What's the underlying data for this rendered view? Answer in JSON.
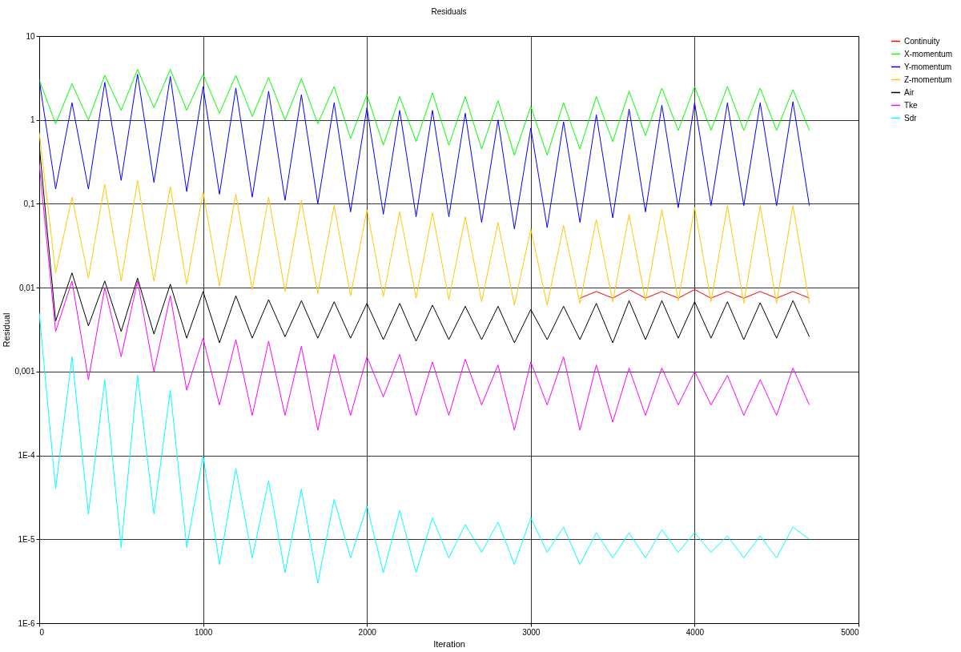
{
  "chart_data": {
    "type": "line",
    "title": "Residuals",
    "xlabel": "Iteration",
    "ylabel": "Residual",
    "log": "y",
    "grid": true,
    "legend": "right",
    "line_style": "solid",
    "xlim": [
      0,
      5000
    ],
    "xticks": [
      0,
      1000,
      2000,
      3000,
      4000,
      5000
    ],
    "ylim": [
      1e-06,
      10
    ],
    "yticks": [
      {
        "value": 1e-06,
        "label": "1E-6"
      },
      {
        "value": 1e-05,
        "label": "1E-5"
      },
      {
        "value": 0.0001,
        "label": "1E-4"
      },
      {
        "value": 0.001,
        "label": "0,001"
      },
      {
        "value": 0.01,
        "label": "0,01"
      },
      {
        "value": 0.1,
        "label": "0,1"
      },
      1,
      10
    ],
    "x": [
      0,
      100,
      200,
      300,
      400,
      500,
      600,
      700,
      800,
      900,
      1000,
      1100,
      1200,
      1300,
      1400,
      1500,
      1600,
      1700,
      1800,
      1900,
      2000,
      2100,
      2200,
      2300,
      2400,
      2500,
      2600,
      2700,
      2800,
      2900,
      3000,
      3100,
      3200,
      3300,
      3400,
      3500,
      3600,
      3700,
      3800,
      3900,
      4000,
      4100,
      4200,
      4300,
      4400,
      4500,
      4600,
      4700
    ],
    "series": [
      {
        "name": "Continuity",
        "color": "#ff0000",
        "x": [
          3300,
          3400,
          3500,
          3600,
          3700,
          3800,
          3900,
          4000,
          4100,
          4200,
          4300,
          4400,
          4500,
          4600,
          4700
        ],
        "values": [
          0.0075,
          0.009,
          0.0075,
          0.0095,
          0.0075,
          0.009,
          0.0075,
          0.0095,
          0.0075,
          0.009,
          0.0075,
          0.009,
          0.0075,
          0.009,
          0.0075
        ]
      },
      {
        "name": "X-momentum",
        "color": "#00ff00",
        "values": [
          3.0,
          0.9,
          2.7,
          1.0,
          3.4,
          1.3,
          4.0,
          1.4,
          4.0,
          1.3,
          3.5,
          1.2,
          3.4,
          1.1,
          3.2,
          1.0,
          3.1,
          0.9,
          2.5,
          0.6,
          2.0,
          0.5,
          1.9,
          0.55,
          2.1,
          0.5,
          1.9,
          0.45,
          1.7,
          0.38,
          1.45,
          0.38,
          1.6,
          0.45,
          1.9,
          0.55,
          2.2,
          0.65,
          2.4,
          0.75,
          2.5,
          0.75,
          2.5,
          0.75,
          2.4,
          0.75,
          2.3,
          0.75
        ]
      },
      {
        "name": "Y-momentum",
        "color": "#0000ff",
        "values": [
          3.0,
          0.15,
          1.6,
          0.15,
          2.8,
          0.19,
          3.5,
          0.18,
          3.3,
          0.14,
          2.5,
          0.13,
          2.4,
          0.12,
          2.2,
          0.11,
          2.0,
          0.1,
          1.6,
          0.08,
          1.4,
          0.075,
          1.3,
          0.07,
          1.3,
          0.07,
          1.2,
          0.06,
          1.0,
          0.05,
          0.8,
          0.052,
          0.95,
          0.06,
          1.15,
          0.068,
          1.35,
          0.08,
          1.5,
          0.09,
          1.6,
          0.095,
          1.6,
          0.095,
          1.6,
          0.095,
          1.65,
          0.095
        ]
      },
      {
        "name": "Z-momentum",
        "color": "#ffc800",
        "values": [
          0.7,
          0.015,
          0.12,
          0.013,
          0.17,
          0.012,
          0.19,
          0.012,
          0.16,
          0.011,
          0.14,
          0.0105,
          0.13,
          0.0095,
          0.12,
          0.009,
          0.11,
          0.0085,
          0.095,
          0.008,
          0.085,
          0.0078,
          0.08,
          0.0075,
          0.078,
          0.0072,
          0.07,
          0.0068,
          0.06,
          0.0062,
          0.05,
          0.0062,
          0.055,
          0.0065,
          0.065,
          0.0068,
          0.075,
          0.007,
          0.085,
          0.007,
          0.09,
          0.0068,
          0.095,
          0.0065,
          0.095,
          0.0065,
          0.095,
          0.0065
        ]
      },
      {
        "name": "Air",
        "color": "#000000",
        "values": [
          0.5,
          0.004,
          0.015,
          0.0035,
          0.012,
          0.003,
          0.013,
          0.0028,
          0.011,
          0.0025,
          0.009,
          0.0022,
          0.008,
          0.0025,
          0.0072,
          0.0026,
          0.007,
          0.0025,
          0.0068,
          0.0025,
          0.0065,
          0.0024,
          0.0065,
          0.0023,
          0.0062,
          0.0024,
          0.006,
          0.0024,
          0.006,
          0.0022,
          0.0055,
          0.0024,
          0.006,
          0.0024,
          0.0065,
          0.0022,
          0.007,
          0.0024,
          0.007,
          0.0025,
          0.0068,
          0.0025,
          0.0068,
          0.0024,
          0.0066,
          0.0025,
          0.007,
          0.0026
        ]
      },
      {
        "name": "Tke",
        "color": "#ff00ff",
        "values": [
          0.3,
          0.003,
          0.012,
          0.0008,
          0.01,
          0.0015,
          0.012,
          0.001,
          0.008,
          0.0006,
          0.0025,
          0.0004,
          0.0024,
          0.0003,
          0.0023,
          0.0003,
          0.002,
          0.0002,
          0.0016,
          0.0003,
          0.0015,
          0.0005,
          0.0016,
          0.0003,
          0.0013,
          0.0003,
          0.0014,
          0.0004,
          0.0012,
          0.0002,
          0.0013,
          0.0004,
          0.0015,
          0.0002,
          0.0012,
          0.00025,
          0.0011,
          0.0003,
          0.0011,
          0.0004,
          0.001,
          0.0004,
          0.0009,
          0.0003,
          0.0008,
          0.0003,
          0.0011,
          0.0004
        ]
      },
      {
        "name": "Sdr",
        "color": "#00ffff",
        "values": [
          0.005,
          4e-05,
          0.0015,
          2e-05,
          0.0008,
          8e-06,
          0.0009,
          2e-05,
          0.0006,
          8e-06,
          0.0001,
          5e-06,
          7e-05,
          6e-06,
          5e-05,
          4e-06,
          4e-05,
          3e-06,
          3e-05,
          6e-06,
          2.5e-05,
          4e-06,
          2.2e-05,
          4e-06,
          1.8e-05,
          6e-06,
          1.5e-05,
          7e-06,
          1.6e-05,
          5e-06,
          1.8e-05,
          7e-06,
          1.4e-05,
          5e-06,
          1.2e-05,
          6e-06,
          1.2e-05,
          6e-06,
          1.3e-05,
          7e-06,
          1.2e-05,
          7e-06,
          1.1e-05,
          6e-06,
          1.1e-05,
          6e-06,
          1.4e-05,
          1e-05
        ]
      }
    ]
  }
}
